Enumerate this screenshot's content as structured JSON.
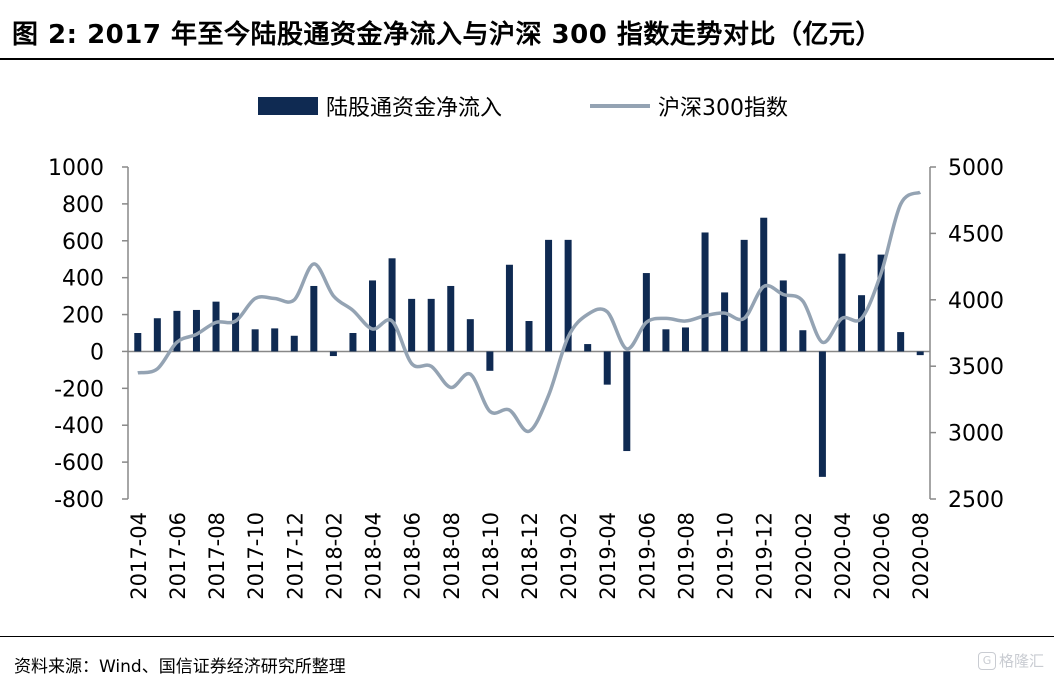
{
  "header": {
    "title": "图 2:  2017 年至今陆股通资金净流入与沪深 300 指数走势对比（亿元）"
  },
  "footer": {
    "source": "资料来源：Wind、国信证券经济研究所整理",
    "watermark": "格隆汇"
  },
  "chart_data": {
    "type": "bar+line",
    "title": "2017 年至今陆股通资金净流入与沪深 300 指数走势对比（亿元）",
    "unit": "亿元",
    "legend_position": "top-center",
    "categories": [
      "2017-04",
      "2017-05",
      "2017-06",
      "2017-07",
      "2017-08",
      "2017-09",
      "2017-10",
      "2017-11",
      "2017-12",
      "2018-01",
      "2018-02",
      "2018-03",
      "2018-04",
      "2018-05",
      "2018-06",
      "2018-07",
      "2018-08",
      "2018-09",
      "2018-10",
      "2018-11",
      "2018-12",
      "2019-01",
      "2019-02",
      "2019-03",
      "2019-04",
      "2019-05",
      "2019-06",
      "2019-07",
      "2019-08",
      "2019-09",
      "2019-10",
      "2019-11",
      "2019-12",
      "2020-01",
      "2020-02",
      "2020-03",
      "2020-04",
      "2020-05",
      "2020-06",
      "2020-07",
      "2020-08"
    ],
    "xtick_labels": [
      "2017-04",
      "2017-06",
      "2017-08",
      "2017-10",
      "2017-12",
      "2018-02",
      "2018-04",
      "2018-06",
      "2018-08",
      "2018-10",
      "2018-12",
      "2019-02",
      "2019-04",
      "2019-06",
      "2019-08",
      "2019-10",
      "2019-12",
      "2020-02",
      "2020-04",
      "2020-06",
      "2020-08"
    ],
    "series": [
      {
        "name": "陆股通资金净流入",
        "type": "bar",
        "axis": "left",
        "color": "#0f2a52",
        "values": [
          100,
          180,
          220,
          225,
          270,
          210,
          120,
          125,
          85,
          355,
          -25,
          100,
          385,
          505,
          285,
          285,
          355,
          175,
          -105,
          470,
          165,
          605,
          605,
          40,
          -180,
          -540,
          425,
          120,
          130,
          645,
          320,
          605,
          725,
          385,
          115,
          -680,
          530,
          305,
          525,
          105,
          -20
        ]
      },
      {
        "name": "沪深300指数",
        "type": "line",
        "axis": "right",
        "color": "#94a3b3",
        "values": [
          3450,
          3480,
          3680,
          3740,
          3830,
          3840,
          4010,
          4010,
          4000,
          4270,
          4030,
          3920,
          3780,
          3840,
          3520,
          3500,
          3340,
          3440,
          3160,
          3170,
          3010,
          3280,
          3720,
          3890,
          3910,
          3630,
          3830,
          3860,
          3840,
          3880,
          3900,
          3860,
          4100,
          4040,
          3990,
          3680,
          3860,
          3860,
          4200,
          4720,
          4810
        ]
      }
    ],
    "y_left": {
      "min": -800,
      "max": 1000,
      "ticks": [
        1000,
        800,
        600,
        400,
        200,
        0,
        -200,
        -400,
        -600,
        -800
      ]
    },
    "y_right": {
      "min": 2500,
      "max": 5000,
      "ticks": [
        5000,
        4500,
        4000,
        3500,
        3000,
        2500
      ]
    }
  }
}
